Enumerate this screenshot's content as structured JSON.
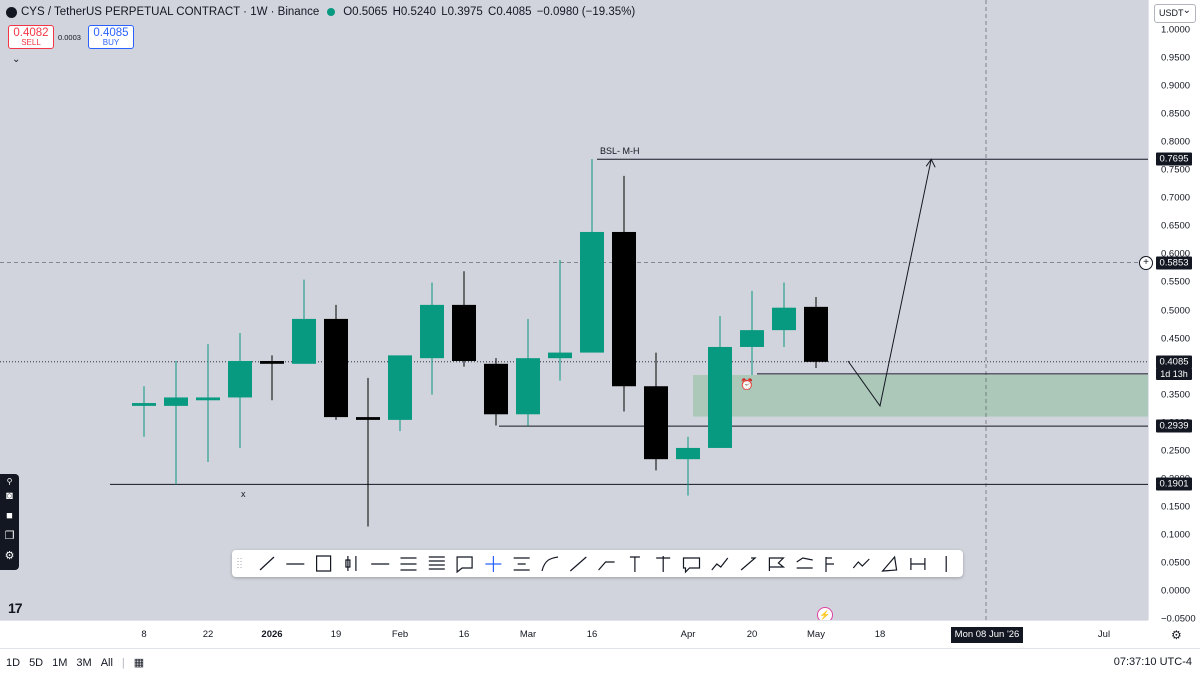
{
  "header": {
    "symbol": "CYS / TetherUS PERPETUAL CONTRACT · 1W · Binance",
    "open": "O0.5065",
    "high": "H0.5240",
    "low": "L0.3975",
    "close": "C0.4085",
    "change": "−0.0980 (−19.35%)",
    "sell_price": "0.4082",
    "sell_label": "SELL",
    "spread": "0.0003",
    "buy_price": "0.4085",
    "buy_label": "BUY",
    "currency": "USDT"
  },
  "colors": {
    "up": "#089981",
    "down": "#000000",
    "zone": "#a5c6b1",
    "background": "#d1d4dc"
  },
  "chart_data": {
    "type": "candlestick",
    "y_ticks": [
      "1.0000",
      "0.9500",
      "0.9000",
      "0.8500",
      "0.8000",
      "0.7500",
      "0.7000",
      "0.6500",
      "0.6000",
      "0.5500",
      "0.5000",
      "0.4500",
      "0.4000",
      "0.3500",
      "0.3000",
      "0.2500",
      "0.2000",
      "0.1500",
      "0.1000",
      "0.0500",
      "0.0000",
      "−0.0500"
    ],
    "ylim": [
      -0.07,
      1.03
    ],
    "x_ticks": [
      {
        "label": "8",
        "week": 0
      },
      {
        "label": "22",
        "week": 2
      },
      {
        "label": "2026",
        "week": 4,
        "bold": true
      },
      {
        "label": "19",
        "week": 6
      },
      {
        "label": "Feb",
        "week": 8
      },
      {
        "label": "16",
        "week": 10
      },
      {
        "label": "Mar",
        "week": 12
      },
      {
        "label": "16",
        "week": 14
      },
      {
        "label": "Apr",
        "week": 17
      },
      {
        "label": "20",
        "week": 19
      },
      {
        "label": "May",
        "week": 21
      },
      {
        "label": "18",
        "week": 23
      },
      {
        "label": "Jul",
        "week": 30
      }
    ],
    "candles": [
      {
        "o": 0.33,
        "h": 0.365,
        "l": 0.275,
        "c": 0.335
      },
      {
        "o": 0.33,
        "h": 0.41,
        "l": 0.19,
        "c": 0.345
      },
      {
        "o": 0.34,
        "h": 0.44,
        "l": 0.23,
        "c": 0.345
      },
      {
        "o": 0.345,
        "h": 0.46,
        "l": 0.255,
        "c": 0.41
      },
      {
        "o": 0.41,
        "h": 0.42,
        "l": 0.34,
        "c": 0.405
      },
      {
        "o": 0.405,
        "h": 0.555,
        "l": 0.405,
        "c": 0.485
      },
      {
        "o": 0.485,
        "h": 0.51,
        "l": 0.305,
        "c": 0.31
      },
      {
        "o": 0.31,
        "h": 0.38,
        "l": 0.115,
        "c": 0.305
      },
      {
        "o": 0.305,
        "h": 0.42,
        "l": 0.285,
        "c": 0.42
      },
      {
        "o": 0.415,
        "h": 0.55,
        "l": 0.35,
        "c": 0.51
      },
      {
        "o": 0.51,
        "h": 0.57,
        "l": 0.4,
        "c": 0.41
      },
      {
        "o": 0.405,
        "h": 0.415,
        "l": 0.295,
        "c": 0.315
      },
      {
        "o": 0.315,
        "h": 0.485,
        "l": 0.295,
        "c": 0.415
      },
      {
        "o": 0.415,
        "h": 0.59,
        "l": 0.375,
        "c": 0.425
      },
      {
        "o": 0.425,
        "h": 0.77,
        "l": 0.425,
        "c": 0.64
      },
      {
        "o": 0.64,
        "h": 0.74,
        "l": 0.32,
        "c": 0.365
      },
      {
        "o": 0.365,
        "h": 0.425,
        "l": 0.215,
        "c": 0.235
      },
      {
        "o": 0.235,
        "h": 0.275,
        "l": 0.17,
        "c": 0.255
      },
      {
        "o": 0.255,
        "h": 0.49,
        "l": 0.255,
        "c": 0.435
      },
      {
        "o": 0.435,
        "h": 0.535,
        "l": 0.385,
        "c": 0.465
      },
      {
        "o": 0.465,
        "h": 0.55,
        "l": 0.435,
        "c": 0.505
      },
      {
        "o": 0.5065,
        "h": 0.524,
        "l": 0.3975,
        "c": 0.4085
      }
    ],
    "price_tags": [
      {
        "label": "0.7695",
        "value": 0.7695
      },
      {
        "label": "0.5853",
        "value": 0.5853
      },
      {
        "label": "0.4085",
        "value": 0.4085,
        "sub": "1d 13h"
      },
      {
        "label": "0.2939",
        "value": 0.2939
      },
      {
        "label": "0.1901",
        "value": 0.1901
      }
    ],
    "levels": {
      "bsl": 0.7695,
      "crosshair": 0.5853,
      "current": 0.4085,
      "support_mid": 0.2939,
      "support_low": 0.1901,
      "zone_top": 0.385,
      "zone_bottom": 0.311,
      "zone_line": 0.387
    },
    "annotations": {
      "bsl_label": "BSL- M-H",
      "x_label": "x"
    },
    "projection": [
      {
        "week": 22.0,
        "price": 0.41
      },
      {
        "week": 23.0,
        "price": 0.33
      },
      {
        "week": 24.6,
        "price": 0.7695
      }
    ],
    "crosshair_date": "Mon 08 Jun '26"
  },
  "footer": {
    "ranges": [
      "1D",
      "5D",
      "1M",
      "3M",
      "All"
    ],
    "clock": "07:37:10 UTC-4"
  }
}
